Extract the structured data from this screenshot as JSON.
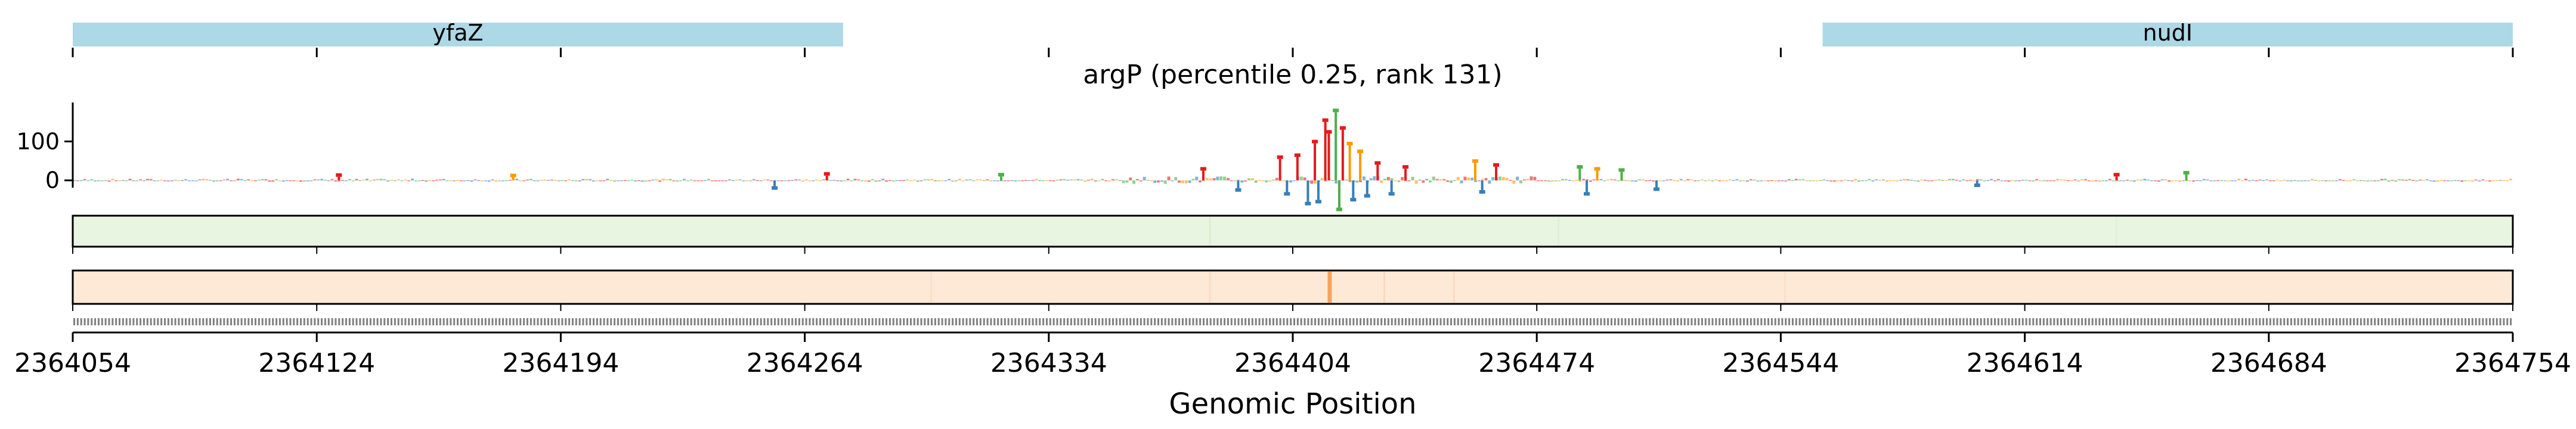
{
  "chart_data": {
    "type": "genome-track",
    "title": "argP (percentile 0.25, rank 131)",
    "xlabel": "Genomic Position",
    "xlim": [
      2364054,
      2364754
    ],
    "x_ticks": [
      2364054,
      2364124,
      2364194,
      2364264,
      2364334,
      2364404,
      2364474,
      2364544,
      2364614,
      2364684,
      2364754
    ],
    "x_tick_labels": [
      "2364054",
      "2364124",
      "2364194",
      "2364264",
      "2364334",
      "2364404",
      "2364474",
      "2364544",
      "2364614",
      "2364684",
      "2364754"
    ],
    "genes": [
      {
        "name": "yfaZ",
        "start": 2364054,
        "end": 2364275,
        "color": "#add8e6"
      },
      {
        "name": "nudI",
        "start": 2364556,
        "end": 2364754,
        "color": "#add8e6"
      }
    ],
    "attribution_track": {
      "y_ticks": [
        0,
        100
      ],
      "y_tick_labels": [
        "0",
        "100"
      ],
      "ylim": [
        -80,
        200
      ],
      "base_colors": {
        "A": "#e41a1c",
        "C": "#377eb8",
        "G": "#4daf4a",
        "T": "#ff9900"
      },
      "peaks": [
        {
          "x": 2364400,
          "y": 55,
          "base": "A"
        },
        {
          "x": 2364402,
          "y": -30,
          "base": "C"
        },
        {
          "x": 2364405,
          "y": 60,
          "base": "A"
        },
        {
          "x": 2364408,
          "y": -55,
          "base": "C"
        },
        {
          "x": 2364410,
          "y": 95,
          "base": "A"
        },
        {
          "x": 2364411,
          "y": -50,
          "base": "C"
        },
        {
          "x": 2364413,
          "y": 150,
          "base": "A"
        },
        {
          "x": 2364414,
          "y": 120,
          "base": "A"
        },
        {
          "x": 2364416,
          "y": 175,
          "base": "G"
        },
        {
          "x": 2364417,
          "y": -70,
          "base": "G"
        },
        {
          "x": 2364418,
          "y": 130,
          "base": "A"
        },
        {
          "x": 2364420,
          "y": 90,
          "base": "T"
        },
        {
          "x": 2364421,
          "y": -45,
          "base": "C"
        },
        {
          "x": 2364423,
          "y": 70,
          "base": "T"
        },
        {
          "x": 2364425,
          "y": -35,
          "base": "C"
        },
        {
          "x": 2364428,
          "y": 40,
          "base": "A"
        },
        {
          "x": 2364432,
          "y": -30,
          "base": "C"
        },
        {
          "x": 2364436,
          "y": 30,
          "base": "A"
        },
        {
          "x": 2364456,
          "y": 45,
          "base": "T"
        },
        {
          "x": 2364458,
          "y": -25,
          "base": "C"
        },
        {
          "x": 2364462,
          "y": 35,
          "base": "A"
        },
        {
          "x": 2364486,
          "y": 30,
          "base": "G"
        },
        {
          "x": 2364488,
          "y": -30,
          "base": "C"
        },
        {
          "x": 2364491,
          "y": 25,
          "base": "T"
        },
        {
          "x": 2364498,
          "y": 22,
          "base": "G"
        },
        {
          "x": 2364508,
          "y": -18,
          "base": "C"
        },
        {
          "x": 2364378,
          "y": 25,
          "base": "A"
        },
        {
          "x": 2364388,
          "y": -20,
          "base": "C"
        },
        {
          "x": 2364255,
          "y": -15,
          "base": "C"
        },
        {
          "x": 2364270,
          "y": 12,
          "base": "A"
        },
        {
          "x": 2364320,
          "y": 10,
          "base": "G"
        },
        {
          "x": 2364180,
          "y": 8,
          "base": "T"
        },
        {
          "x": 2364660,
          "y": 15,
          "base": "G"
        },
        {
          "x": 2364640,
          "y": 10,
          "base": "A"
        },
        {
          "x": 2364600,
          "y": -8,
          "base": "C"
        },
        {
          "x": 2364130,
          "y": 9,
          "base": "A"
        }
      ]
    },
    "track2_color": "#e8f5e0",
    "track3_color": "#fde9d6",
    "track3_highlight": {
      "x": 2364414,
      "color": "#f4a460"
    }
  }
}
